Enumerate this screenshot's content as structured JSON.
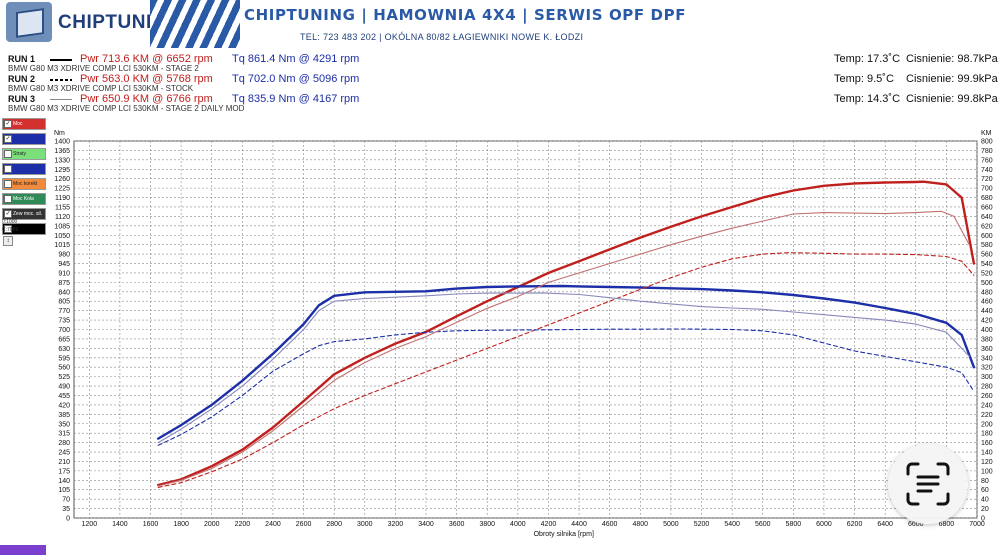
{
  "header": {
    "brand": "CHIPTUNING",
    "banner": "CHIPTUNING | HAMOWNIA 4X4 | SERWIS OPF DPF",
    "contact": "TEL: 723 483 202   |   OKÓLNA 80/82 ŁAGIEWNIKI NOWE K. ŁODZI"
  },
  "runs": [
    {
      "label": "RUN 1",
      "car": "BMW G80 M3 XDRIVE COMP LCI 530KM - STAGE 2",
      "pwr": "Pwr  713.6 KM @ 6652 rpm",
      "tq": "Tq 861.4 Nm @ 4291 rpm",
      "temp": "Temp: 17.3˚C",
      "pressure": "Cisnienie: 98.7kPa"
    },
    {
      "label": "RUN 2",
      "car": "BMW G80 M3 XDRIVE COMP LCI 530KM - STOCK",
      "pwr": "Pwr  563.0 KM @ 5768 rpm",
      "tq": "Tq 702.0 Nm @ 5096 rpm",
      "temp": "Temp: 9.5˚C",
      "pressure": "Cisnienie: 99.9kPa"
    },
    {
      "label": "RUN 3",
      "car": "BMW G80 M3 XDRIVE COMP LCI 530KM - STAGE 2 DAILY MOD",
      "pwr": "Pwr  650.9 KM @ 6766 rpm",
      "tq": "Tq 835.9 Nm @ 4167 rpm",
      "temp": "Temp: 14.3˚C",
      "pressure": "Cisnienie: 99.8kPa"
    }
  ],
  "legend_items": [
    {
      "name": "Moc",
      "color": "#d32f2f",
      "checked": "✓"
    },
    {
      "name": "",
      "color": "#1c2fa8",
      "checked": "✓"
    },
    {
      "name": "Straty",
      "color": "#7be07b",
      "checked": ""
    },
    {
      "name": "",
      "color": "#1c2fa8",
      "checked": ""
    },
    {
      "name": "Moc korekt",
      "color": "#f08a3c",
      "checked": ""
    },
    {
      "name": "Moc Kola",
      "color": "#2e8b57",
      "checked": ""
    },
    {
      "name": "Zew moc. sil.",
      "color": "#333333",
      "checked": "✓"
    },
    {
      "name": "",
      "color": "#000000",
      "checked": ""
    }
  ],
  "side_notes": [
    "0:1000",
    "C:7009"
  ],
  "colors": {
    "power": "#c0201d",
    "torque": "#1c2fa8",
    "grid": "#8a8a8a",
    "brand": "#1f3f7a"
  },
  "chart_data": {
    "type": "line",
    "xlabel": "Obroty silnika [rpm]",
    "ylabel_left": "Nm",
    "ylabel_right": "KM",
    "xlim": [
      1100,
      7000
    ],
    "ylim_left": [
      0,
      1400
    ],
    "ylim_right": [
      0,
      800
    ],
    "grid": true,
    "x_ticks": [
      1200,
      1400,
      1600,
      1800,
      2000,
      2200,
      2400,
      2600,
      2800,
      3000,
      3200,
      3400,
      3600,
      3800,
      4000,
      4200,
      4400,
      4600,
      4800,
      5000,
      5200,
      5400,
      5600,
      5800,
      6000,
      6200,
      6400,
      6600,
      6800,
      7000
    ],
    "y_ticks_left": [
      0,
      35,
      70,
      105,
      140,
      175,
      210,
      245,
      280,
      315,
      350,
      385,
      420,
      455,
      490,
      525,
      560,
      595,
      630,
      665,
      700,
      735,
      770,
      805,
      840,
      875,
      910,
      945,
      980,
      1015,
      1050,
      1085,
      1120,
      1155,
      1190,
      1225,
      1260,
      1295,
      1330,
      1365,
      1400
    ],
    "y_ticks_right": [
      0,
      20,
      40,
      60,
      80,
      100,
      120,
      140,
      160,
      180,
      200,
      220,
      240,
      260,
      280,
      300,
      320,
      340,
      360,
      380,
      400,
      420,
      440,
      460,
      480,
      500,
      520,
      540,
      560,
      580,
      600,
      620,
      640,
      660,
      680,
      700,
      720,
      740,
      760,
      780,
      800
    ],
    "series": [
      {
        "name": "RUN 1",
        "quantity": "power",
        "axis": "right",
        "color": "#c0201d",
        "width": 2.4,
        "dash": "",
        "x": [
          1650,
          1800,
          2000,
          2200,
          2400,
          2600,
          2800,
          3000,
          3200,
          3400,
          3600,
          3800,
          4000,
          4200,
          4400,
          4600,
          4800,
          5000,
          5200,
          5400,
          5600,
          5800,
          6000,
          6200,
          6400,
          6600,
          6652,
          6800,
          6900,
          6980
        ],
        "y": [
          70,
          82,
          110,
          145,
          192,
          248,
          305,
          340,
          370,
          395,
          428,
          460,
          490,
          520,
          545,
          570,
          595,
          618,
          640,
          660,
          680,
          695,
          705,
          710,
          712,
          713,
          713.6,
          708,
          680,
          540
        ]
      },
      {
        "name": "RUN 1",
        "quantity": "torque",
        "axis": "left",
        "color": "#1c2fa8",
        "width": 2.4,
        "dash": "",
        "x": [
          1650,
          1800,
          2000,
          2200,
          2400,
          2600,
          2700,
          2800,
          3000,
          3200,
          3400,
          3600,
          3800,
          4000,
          4291,
          4400,
          4600,
          4800,
          5000,
          5200,
          5400,
          5600,
          5800,
          6000,
          6200,
          6400,
          6600,
          6800,
          6900,
          6980
        ],
        "y": [
          295,
          345,
          420,
          510,
          610,
          720,
          790,
          825,
          838,
          840,
          842,
          852,
          858,
          860,
          861.4,
          860,
          858,
          856,
          853,
          850,
          845,
          838,
          828,
          815,
          800,
          780,
          758,
          725,
          680,
          560
        ]
      },
      {
        "name": "RUN 2",
        "quantity": "power",
        "axis": "right",
        "color": "#c0201d",
        "width": 1.1,
        "dash": "4,3",
        "x": [
          1650,
          1800,
          2000,
          2200,
          2400,
          2600,
          2800,
          3000,
          3200,
          3400,
          3600,
          3800,
          4000,
          4200,
          4400,
          4600,
          4800,
          5000,
          5200,
          5400,
          5600,
          5768,
          6000,
          6200,
          6400,
          6600,
          6800,
          6900,
          6980
        ],
        "y": [
          65,
          75,
          98,
          125,
          160,
          198,
          232,
          260,
          285,
          310,
          335,
          360,
          385,
          410,
          435,
          460,
          485,
          510,
          532,
          550,
          560,
          563,
          562,
          560,
          560,
          559,
          555,
          545,
          515
        ]
      },
      {
        "name": "RUN 2",
        "quantity": "torque",
        "axis": "left",
        "color": "#1c2fa8",
        "width": 1.1,
        "dash": "4,3",
        "x": [
          1650,
          1800,
          2000,
          2200,
          2400,
          2600,
          2700,
          2800,
          3000,
          3200,
          3400,
          3600,
          3800,
          4000,
          4200,
          4400,
          4600,
          4800,
          5000,
          5096,
          5400,
          5600,
          5800,
          6000,
          6200,
          6400,
          6600,
          6800,
          6900,
          6980
        ],
        "y": [
          270,
          310,
          375,
          455,
          545,
          610,
          640,
          655,
          665,
          680,
          690,
          695,
          697,
          698,
          699,
          700,
          701,
          701,
          702,
          702,
          700,
          695,
          680,
          650,
          620,
          600,
          580,
          560,
          540,
          470
        ]
      },
      {
        "name": "RUN 3",
        "quantity": "power",
        "axis": "right",
        "color": "#c07070",
        "width": 1.1,
        "dash": "",
        "x": [
          1650,
          1800,
          2000,
          2200,
          2400,
          2600,
          2800,
          3000,
          3200,
          3400,
          3600,
          3800,
          4000,
          4200,
          4400,
          4600,
          4800,
          5000,
          5200,
          5400,
          5600,
          5800,
          6000,
          6200,
          6400,
          6600,
          6766,
          6850,
          6950
        ],
        "y": [
          68,
          80,
          105,
          140,
          185,
          238,
          292,
          330,
          360,
          385,
          415,
          445,
          470,
          500,
          520,
          540,
          560,
          580,
          598,
          615,
          630,
          645,
          648,
          647,
          646,
          648,
          650.9,
          640,
          580
        ]
      },
      {
        "name": "RUN 3",
        "quantity": "torque",
        "axis": "left",
        "color": "#8888bb",
        "width": 1.1,
        "dash": "",
        "x": [
          1650,
          1800,
          2000,
          2200,
          2400,
          2600,
          2700,
          2800,
          3000,
          3200,
          3400,
          3600,
          3800,
          4000,
          4167,
          4400,
          4600,
          4800,
          5000,
          5200,
          5400,
          5600,
          5800,
          6000,
          6200,
          6400,
          6600,
          6800,
          6950
        ],
        "y": [
          280,
          330,
          405,
          490,
          590,
          700,
          770,
          805,
          815,
          820,
          825,
          832,
          835,
          835,
          835.9,
          830,
          818,
          805,
          795,
          785,
          780,
          775,
          765,
          755,
          745,
          735,
          720,
          690,
          600
        ]
      }
    ]
  }
}
